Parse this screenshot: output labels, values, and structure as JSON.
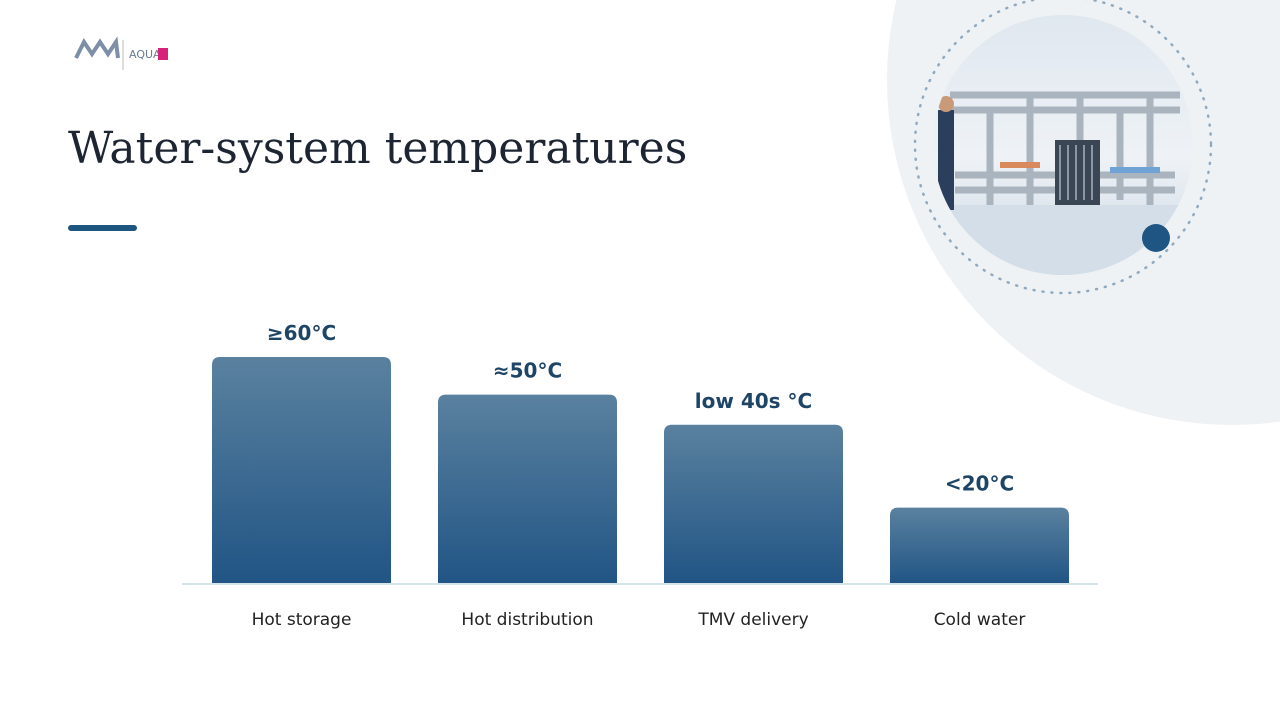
{
  "logo_text": "AQUA",
  "chart_data": {
    "type": "bar",
    "title": "Water-system temperatures",
    "categories": [
      "Hot storage",
      "Hot distribution",
      "TMV delivery",
      "Cold water"
    ],
    "values": [
      60,
      50,
      42,
      20
    ],
    "value_labels": [
      "≥60°C",
      "≈50°C",
      "low 40s °C",
      "<20°C"
    ],
    "color": "#2a5d88"
  }
}
